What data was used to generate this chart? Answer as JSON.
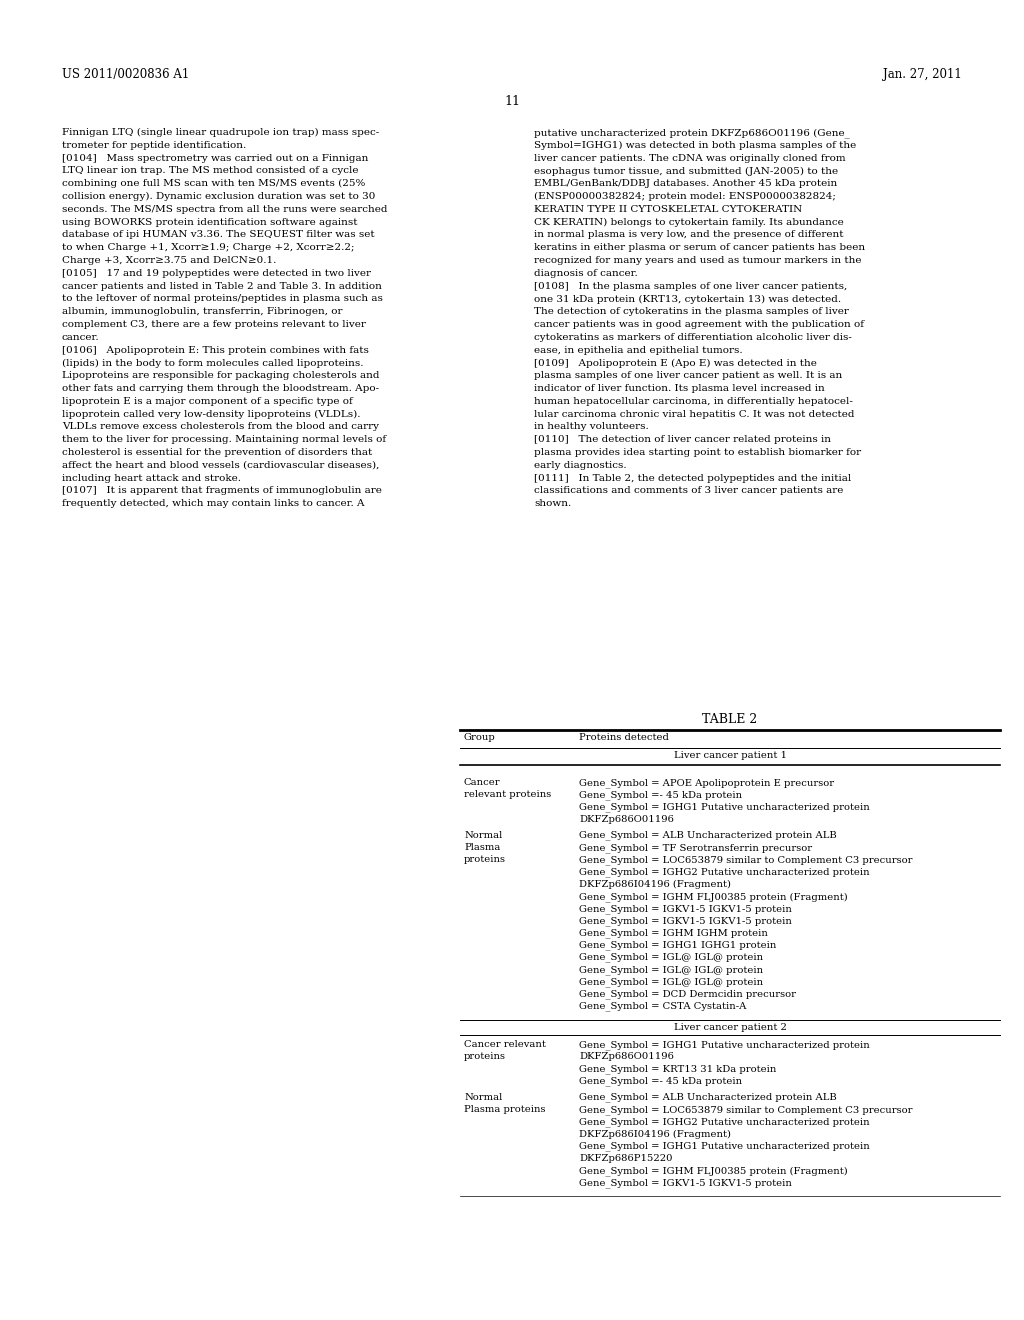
{
  "page_header_left": "US 2011/0020836 A1",
  "page_header_right": "Jan. 27, 2011",
  "page_number": "11",
  "bg_color": "#ffffff",
  "text_color": "#000000",
  "left_column_text": [
    "Finnigan LTQ (single linear quadrupole ion trap) mass spec-",
    "trometer for peptide identification.",
    "[0104]   Mass spectrometry was carried out on a Finnigan",
    "LTQ linear ion trap. The MS method consisted of a cycle",
    "combining one full MS scan with ten MS/MS events (25%",
    "collision energy). Dynamic exclusion duration was set to 30",
    "seconds. The MS/MS spectra from all the runs were searched",
    "using BOWORKS protein identification software against",
    "database of ipi HUMAN v3.36. The SEQUEST filter was set",
    "to when Charge +1, Xcorr≥1.9; Charge +2, Xcorr≥2.2;",
    "Charge +3, Xcorr≥3.75 and DelCN≥0.1.",
    "[0105]   17 and 19 polypeptides were detected in two liver",
    "cancer patients and listed in Table 2 and Table 3. In addition",
    "to the leftover of normal proteins/peptides in plasma such as",
    "albumin, immunoglobulin, transferrin, Fibrinogen, or",
    "complement C3, there are a few proteins relevant to liver",
    "cancer.",
    "[0106]   Apolipoprotein E: This protein combines with fats",
    "(lipids) in the body to form molecules called lipoproteins.",
    "Lipoproteins are responsible for packaging cholesterols and",
    "other fats and carrying them through the bloodstream. Apo-",
    "lipoprotein E is a major component of a specific type of",
    "lipoprotein called very low-density lipoproteins (VLDLs).",
    "VLDLs remove excess cholesterols from the blood and carry",
    "them to the liver for processing. Maintaining normal levels of",
    "cholesterol is essential for the prevention of disorders that",
    "affect the heart and blood vessels (cardiovascular diseases),",
    "including heart attack and stroke.",
    "[0107]   It is apparent that fragments of immunoglobulin are",
    "frequently detected, which may contain links to cancer. A"
  ],
  "right_column_text": [
    "putative uncharacterized protein DKFZp686O01196 (Gene_",
    "Symbol=IGHG1) was detected in both plasma samples of the",
    "liver cancer patients. The cDNA was originally cloned from",
    "esophagus tumor tissue, and submitted (JAN-2005) to the",
    "EMBL/GenBank/DDBJ databases. Another 45 kDa protein",
    "(ENSP00000382824; protein model: ENSP00000382824;",
    "KERATIN TYPE II CYTOSKELETAL CYTOKERATIN",
    "CK KERATIN) belongs to cytokertain family. Its abundance",
    "in normal plasma is very low, and the presence of different",
    "keratins in either plasma or serum of cancer patients has been",
    "recognized for many years and used as tumour markers in the",
    "diagnosis of cancer.",
    "[0108]   In the plasma samples of one liver cancer patients,",
    "one 31 kDa protein (KRT13, cytokertain 13) was detected.",
    "The detection of cytokeratins in the plasma samples of liver",
    "cancer patients was in good agreement with the publication of",
    "cytokeratins as markers of differentiation alcoholic liver dis-",
    "ease, in epithelia and epithelial tumors.",
    "[0109]   Apolipoprotein E (Apo E) was detected in the",
    "plasma samples of one liver cancer patient as well. It is an",
    "indicator of liver function. Its plasma level increased in",
    "human hepatocellular carcinoma, in differentially hepatocel-",
    "lular carcinoma chronic viral hepatitis C. It was not detected",
    "in healthy volunteers.",
    "[0110]   The detection of liver cancer related proteins in",
    "plasma provides idea starting point to establish biomarker for",
    "early diagnostics.",
    "[0111]   In Table 2, the detected polypeptides and the initial",
    "classifications and comments of 3 liver cancer patients are",
    "shown."
  ],
  "table_title": "TABLE 2",
  "table_col1_header": "Group",
  "table_col2_header": "Proteins detected",
  "patient1_header": "Liver cancer patient 1",
  "patient1_cancer_label": "Cancer\nrelevant proteins",
  "patient1_cancer_proteins": [
    "Gene_Symbol = APOE Apolipoprotein E precursor",
    "Gene_Symbol =- 45 kDa protein",
    "Gene_Symbol = IGHG1 Putative uncharacterized protein",
    "DKFZp686O01196"
  ],
  "patient1_normal_label": "Normal\nPlasma\nproteins",
  "patient1_normal_proteins": [
    "Gene_Symbol = ALB Uncharacterized protein ALB",
    "Gene_Symbol = TF Serotransferrin precursor",
    "Gene_Symbol = LOC653879 similar to Complement C3 precursor",
    "Gene_Symbol = IGHG2 Putative uncharacterized protein",
    "DKFZp686I04196 (Fragment)",
    "Gene_Symbol = IGHM FLJ00385 protein (Fragment)",
    "Gene_Symbol = IGKV1-5 IGKV1-5 protein",
    "Gene_Symbol = IGKV1-5 IGKV1-5 protein",
    "Gene_Symbol = IGHM IGHM protein",
    "Gene_Symbol = IGHG1 IGHG1 protein",
    "Gene_Symbol = IGL@ IGL@ protein",
    "Gene_Symbol = IGL@ IGL@ protein",
    "Gene_Symbol = IGL@ IGL@ protein",
    "Gene_Symbol = DCD Dermcidin precursor",
    "Gene_Symbol = CSTA Cystatin-A"
  ],
  "patient2_header": "Liver cancer patient 2",
  "patient2_cancer_label": "Cancer relevant\nproteins",
  "patient2_cancer_proteins": [
    "Gene_Symbol = IGHG1 Putative uncharacterized protein",
    "DKFZp686O01196",
    "Gene_Symbol = KRT13 31 kDa protein",
    "Gene_Symbol =- 45 kDa protein"
  ],
  "patient2_normal_label": "Normal\nPlasma proteins",
  "patient2_normal_proteins": [
    "Gene_Symbol = ALB Uncharacterized protein ALB",
    "Gene_Symbol = LOC653879 similar to Complement C3 precursor",
    "Gene_Symbol = IGHG2 Putative uncharacterized protein",
    "DKFZp686I04196 (Fragment)",
    "Gene_Symbol = IGHG1 Putative uncharacterized protein",
    "DKFZp686P15220",
    "Gene_Symbol = IGHM FLJ00385 protein (Fragment)",
    "Gene_Symbol = IGKV1-5 IGKV1-5 protein"
  ]
}
